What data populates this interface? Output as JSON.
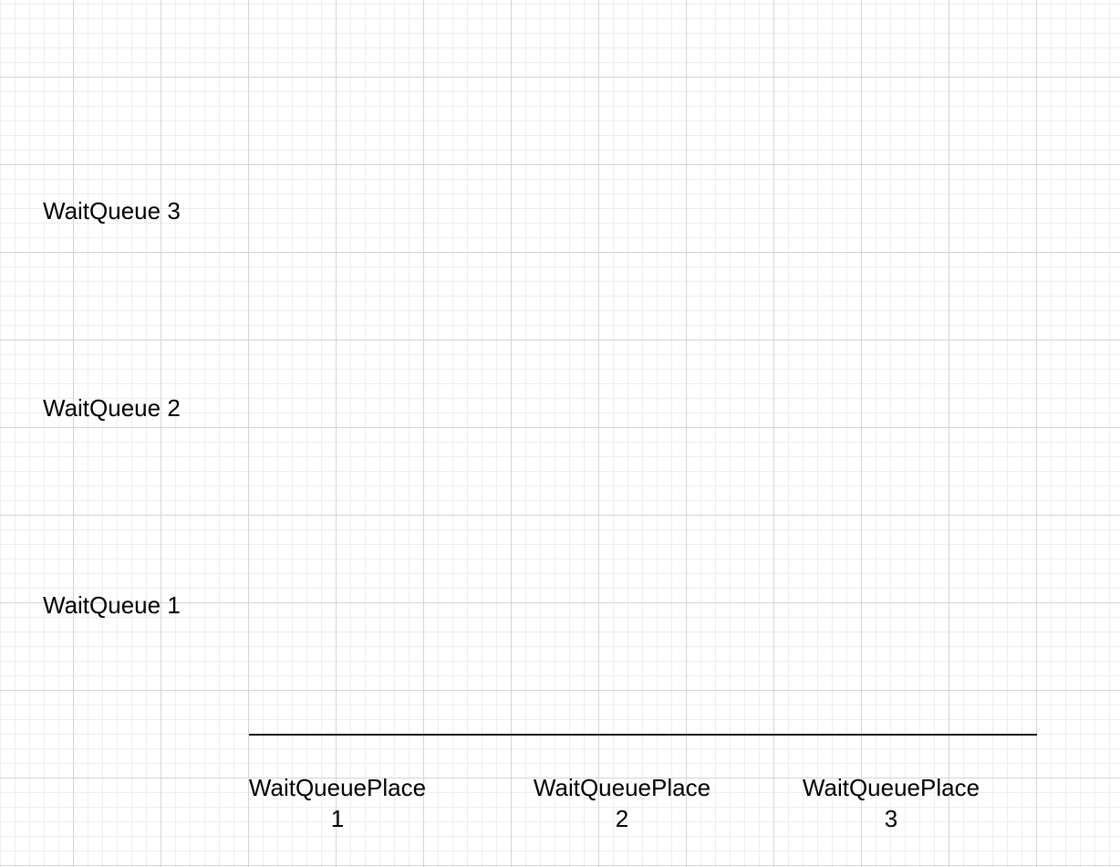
{
  "diagram": {
    "rows": [
      {
        "label": "WaitQueue 3"
      },
      {
        "label": "WaitQueue 2"
      },
      {
        "label": "WaitQueue 1"
      }
    ],
    "columns": [
      {
        "line1": "WaitQueuePlace",
        "line2": "1"
      },
      {
        "line1": "WaitQueuePlace",
        "line2": "2"
      },
      {
        "line1": "WaitQueuePlace",
        "line2": "3"
      }
    ],
    "colors": {
      "axis": "#1a1a1a",
      "grid_major": "#d4d4d4",
      "grid_minor": "#eeeeee",
      "text": "#000000"
    }
  }
}
